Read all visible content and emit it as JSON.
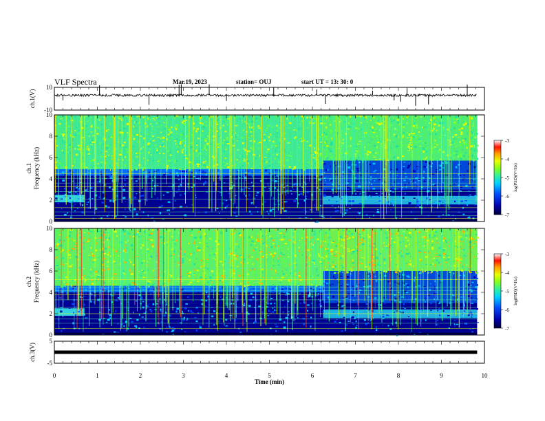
{
  "header": {
    "title": "VLF Spectra",
    "date": "Mar.19, 2023",
    "station": "station= OUJ",
    "start": "start  UT =   13: 30: 0"
  },
  "chart_data": [
    {
      "type": "line",
      "panel": "ch1-waveform",
      "ylabel": "ch.1(V)",
      "ylim": [
        -10,
        10
      ],
      "yticks": [
        "10",
        "-10"
      ],
      "xlim": [
        0,
        10
      ],
      "baseline": 3,
      "color": "#000000"
    },
    {
      "type": "heatmap",
      "panel": "ch1-spectrogram",
      "ylabel": "ch.1\nFrequency (kHz)",
      "ylim": [
        0,
        10
      ],
      "yticks": [
        "0",
        "2",
        "4",
        "6",
        "8",
        "10"
      ],
      "xlim": [
        0,
        10
      ],
      "colorbar": {
        "ticks": [
          "-3",
          "-4",
          "-5",
          "-6",
          "-7"
        ],
        "label": "log(PSD)(V²/Hz)",
        "range": [
          -7,
          -3
        ]
      }
    },
    {
      "type": "heatmap",
      "panel": "ch2-spectrogram",
      "ylabel": "ch.2\nFrequency (kHz)",
      "ylim": [
        0,
        10
      ],
      "yticks": [
        "0",
        "2",
        "4",
        "6",
        "8",
        "10"
      ],
      "xlim": [
        0,
        10
      ],
      "colorbar": {
        "ticks": [
          "-3",
          "-4",
          "-5",
          "-6",
          "-7"
        ],
        "label": "log(PSD)(V²/Hz)",
        "range": [
          -7,
          -3
        ]
      }
    },
    {
      "type": "line",
      "panel": "ch3-waveform",
      "ylabel": "ch.3(V)",
      "ylim": [
        -5,
        5
      ],
      "yticks": [
        "5",
        "-5"
      ],
      "xlim": [
        0,
        10
      ],
      "baseline": 0,
      "color": "#000000"
    }
  ],
  "xaxis": {
    "label": "Time  (min)",
    "ticks": [
      "0",
      "1",
      "2",
      "3",
      "4",
      "5",
      "6",
      "7",
      "8",
      "9",
      "10"
    ],
    "data_end": 9.83
  },
  "colors": {
    "colormap": [
      "#00003a",
      "#0000aa",
      "#0040ff",
      "#00c0ff",
      "#20e0a0",
      "#60ff40",
      "#e0ff00",
      "#ffb000",
      "#ff2000",
      "#ffffff"
    ]
  }
}
